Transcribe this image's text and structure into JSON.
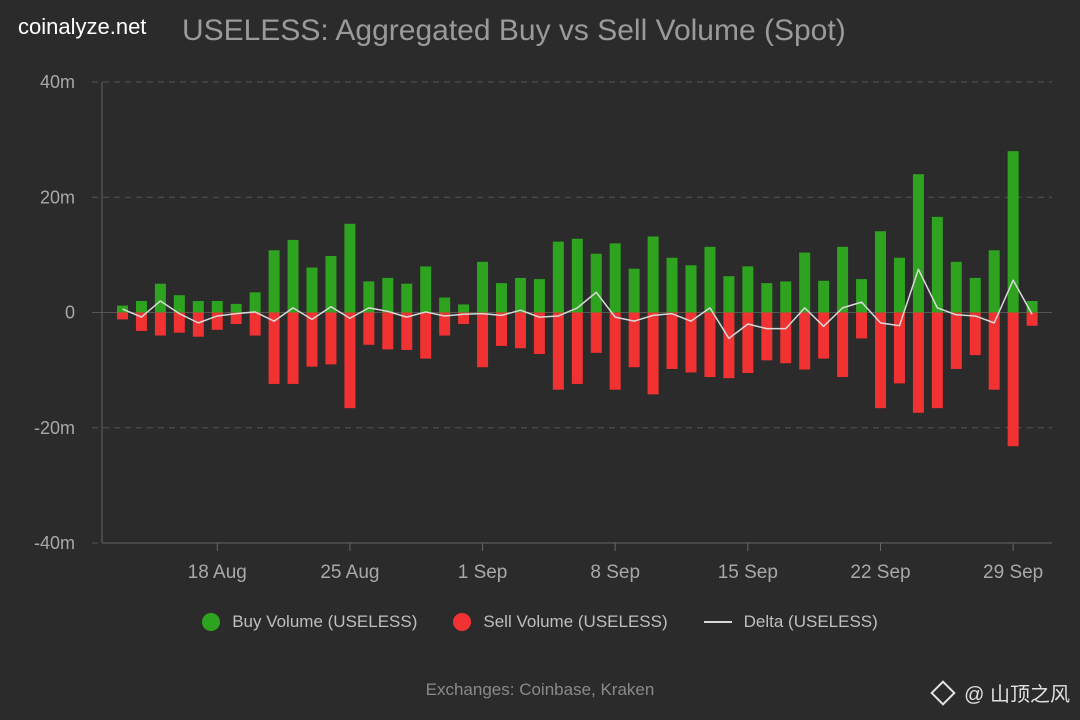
{
  "header": {
    "brand": "coinalyze.net",
    "title": "USELESS: Aggregated Buy vs Sell Volume (Spot)"
  },
  "colors": {
    "background": "#2b2b2b",
    "buy": "#2ea31f",
    "sell": "#f03232",
    "delta": "#d8d8d8",
    "grid": "#555555"
  },
  "chart_data": {
    "type": "bar",
    "title": "USELESS: Aggregated Buy vs Sell Volume (Spot)",
    "ylabel": "",
    "xlabel": "",
    "ylim": [
      -40,
      40
    ],
    "y_ticks": [
      40,
      20,
      0,
      -20,
      -40
    ],
    "y_tick_labels": [
      "40m",
      "20m",
      "0",
      "-20m",
      "-40m"
    ],
    "x_tick_labels": [
      "18 Aug",
      "25 Aug",
      "1 Sep",
      "8 Sep",
      "15 Sep",
      "22 Sep",
      "29 Sep"
    ],
    "x_tick_indices": [
      5,
      12,
      19,
      26,
      33,
      40,
      47
    ],
    "grid": true,
    "units": "millions USELESS",
    "series": [
      {
        "name": "Buy Volume (USELESS)",
        "type": "bar",
        "values": [
          1.2,
          2.0,
          5.0,
          3.0,
          2.0,
          2.0,
          1.5,
          3.5,
          10.8,
          12.6,
          7.8,
          9.8,
          15.4,
          5.4,
          6.0,
          5.0,
          8.0,
          2.6,
          1.4,
          8.8,
          5.1,
          6.0,
          5.8,
          12.3,
          12.8,
          10.2,
          12.0,
          7.6,
          13.2,
          9.5,
          8.2,
          11.4,
          6.3,
          8.0,
          5.1,
          5.4,
          10.4,
          5.5,
          11.4,
          5.8,
          14.1,
          9.5,
          24.0,
          16.6,
          8.8,
          6.0,
          10.8,
          28.0,
          2.0
        ]
      },
      {
        "name": "Sell Volume (USELESS)",
        "type": "bar",
        "values": [
          -1.2,
          -3.2,
          -4.0,
          -3.5,
          -4.2,
          -3.0,
          -2.0,
          -4.0,
          -12.4,
          -12.4,
          -9.4,
          -9.0,
          -16.6,
          -5.6,
          -6.4,
          -6.5,
          -8.0,
          -4.0,
          -2.0,
          -9.5,
          -5.8,
          -6.2,
          -7.2,
          -13.4,
          -12.4,
          -7.0,
          -13.4,
          -9.5,
          -14.2,
          -9.8,
          -10.4,
          -11.2,
          -11.4,
          -10.5,
          -8.3,
          -8.8,
          -9.9,
          -8.0,
          -11.2,
          -4.5,
          -16.6,
          -12.3,
          -17.4,
          -16.6,
          -9.8,
          -7.4,
          -13.4,
          -23.2,
          -2.3
        ]
      },
      {
        "name": "Delta (USELESS)",
        "type": "line",
        "values": [
          0.6,
          -0.8,
          2.0,
          -0.2,
          -1.8,
          -0.6,
          -0.2,
          0.1,
          -1.5,
          0.8,
          -1.2,
          1.0,
          -1.0,
          0.8,
          0.2,
          -0.8,
          0.1,
          -0.6,
          -0.3,
          -0.2,
          -0.5,
          0.4,
          -0.8,
          -0.6,
          0.8,
          3.5,
          -0.8,
          -1.5,
          -0.5,
          -0.2,
          -1.5,
          0.8,
          -4.5,
          -2.0,
          -2.8,
          -2.8,
          0.8,
          -2.4,
          0.8,
          1.8,
          -1.8,
          -2.3,
          7.5,
          0.8,
          -0.4,
          -0.6,
          -1.8,
          5.6,
          -0.3
        ]
      }
    ]
  },
  "legend": {
    "buy": "Buy Volume (USELESS)",
    "sell": "Sell Volume (USELESS)",
    "delta": "Delta (USELESS)"
  },
  "footer": "Exchanges: Coinbase, Kraken",
  "watermark": "@ 山顶之风"
}
